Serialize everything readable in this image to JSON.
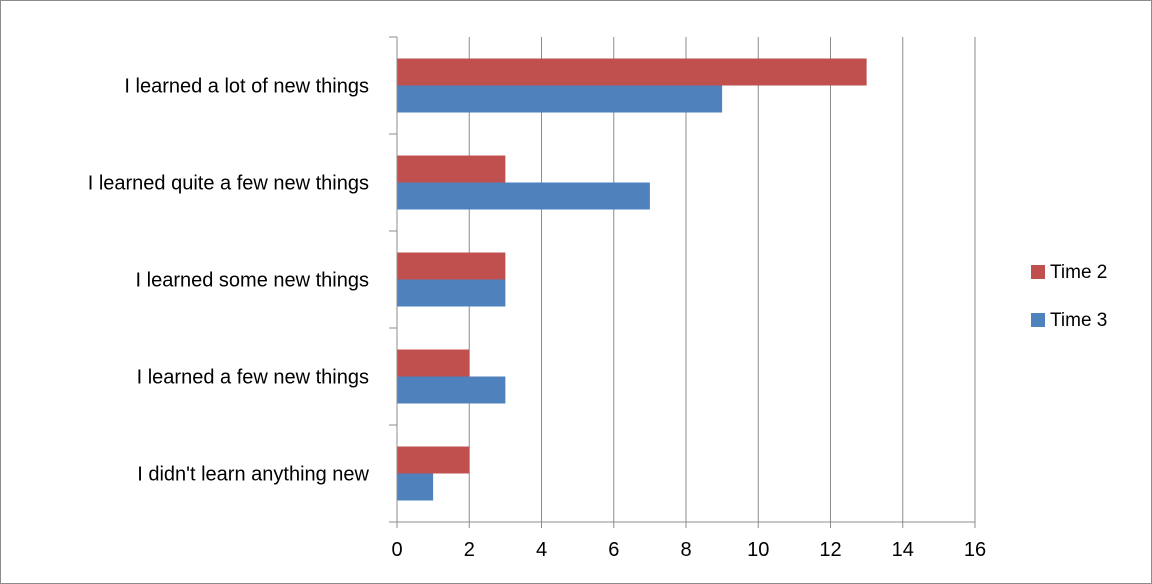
{
  "chart_data": {
    "type": "bar",
    "orientation": "horizontal",
    "title": "",
    "xlabel": "",
    "ylabel": "",
    "categories": [
      "I learned a lot of new things",
      "I learned quite a few new things",
      "I learned some new things",
      "I learned a few new things",
      "I didn't learn anything new"
    ],
    "series": [
      {
        "name": "Time 2",
        "color": "#C0504D",
        "values": [
          13,
          3,
          3,
          2,
          2
        ]
      },
      {
        "name": "Time 3",
        "color": "#4F81BD",
        "values": [
          9,
          7,
          3,
          3,
          1
        ]
      }
    ],
    "xlim": [
      0,
      16
    ],
    "x_ticks": [
      "0",
      "2",
      "4",
      "6",
      "8",
      "10",
      "12",
      "14",
      "16"
    ],
    "grid": "vertical",
    "legend_position": "right"
  }
}
